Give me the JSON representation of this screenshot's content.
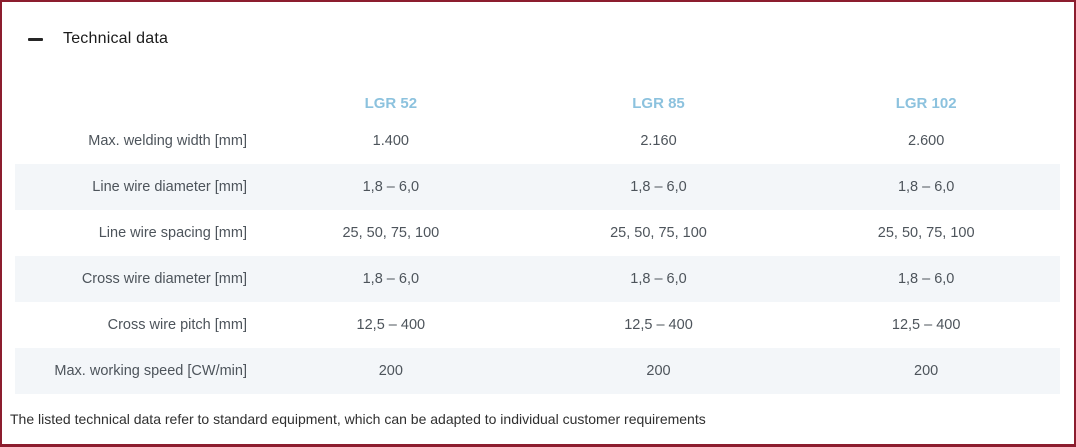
{
  "panel": {
    "title": "Technical data",
    "collapse_icon": "minus-icon",
    "state": "expanded"
  },
  "table": {
    "columns": [
      "LGR 52",
      "LGR 85",
      "LGR 102"
    ],
    "rows": [
      {
        "label": "Max. welding width [mm]",
        "values": [
          "1.400",
          "2.160",
          "2.600"
        ]
      },
      {
        "label": "Line wire diameter [mm]",
        "values": [
          "1,8 – 6,0",
          "1,8 – 6,0",
          "1,8 – 6,0"
        ]
      },
      {
        "label": "Line wire spacing [mm]",
        "values": [
          "25, 50, 75, 100",
          "25, 50, 75, 100",
          "25, 50, 75, 100"
        ]
      },
      {
        "label": "Cross wire diameter [mm]",
        "values": [
          "1,8 – 6,0",
          "1,8 – 6,0",
          "1,8 – 6,0"
        ]
      },
      {
        "label": "Cross wire pitch [mm]",
        "values": [
          "12,5 – 400",
          "12,5 – 400",
          "12,5 – 400"
        ]
      },
      {
        "label": "Max. working speed [CW/min]",
        "values": [
          "200",
          "200",
          "200"
        ]
      }
    ]
  },
  "footer": {
    "note": "The listed technical data refer to standard equipment, which can be adapted to individual customer requirements"
  },
  "colors": {
    "border": "#8C1D2E",
    "row_stripe": "#F3F6F9",
    "column_header_blue": "#8CC2DE",
    "body_text": "#4D545B",
    "title_text": "#1B1B1B"
  }
}
